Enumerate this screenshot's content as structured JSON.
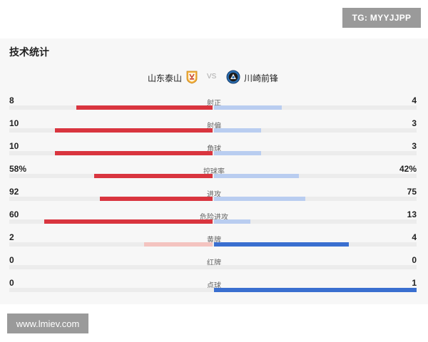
{
  "watermarks": {
    "top": "TG: MYYJJPP",
    "bottom": "www.lmiev.com"
  },
  "panel": {
    "title": "技术统计"
  },
  "teams": {
    "home": {
      "name": "山东泰山",
      "badge_icon": "taishan-badge-icon"
    },
    "vs": "VS",
    "away": {
      "name": "川崎前锋",
      "badge_icon": "kawasaki-badge-icon"
    }
  },
  "colors": {
    "home_strong": "#d9353f",
    "home_weak": "#f4c4c0",
    "away_strong": "#3a6fd0",
    "away_weak": "#b9cdf0",
    "track": "#ececec"
  },
  "stats": [
    {
      "label": "射正",
      "home": "8",
      "away": "4",
      "home_value": 8,
      "away_value": 4
    },
    {
      "label": "射偏",
      "home": "10",
      "away": "3",
      "home_value": 10,
      "away_value": 3
    },
    {
      "label": "角球",
      "home": "10",
      "away": "3",
      "home_value": 10,
      "away_value": 3
    },
    {
      "label": "控球率",
      "home": "58%",
      "away": "42%",
      "home_value": 58,
      "away_value": 42
    },
    {
      "label": "进攻",
      "home": "92",
      "away": "75",
      "home_value": 92,
      "away_value": 75
    },
    {
      "label": "危险进攻",
      "home": "60",
      "away": "13",
      "home_value": 60,
      "away_value": 13
    },
    {
      "label": "黄牌",
      "home": "2",
      "away": "4",
      "home_value": 2,
      "away_value": 4
    },
    {
      "label": "红牌",
      "home": "0",
      "away": "0",
      "home_value": 0,
      "away_value": 0
    },
    {
      "label": "点球",
      "home": "0",
      "away": "1",
      "home_value": 0,
      "away_value": 1
    }
  ]
}
